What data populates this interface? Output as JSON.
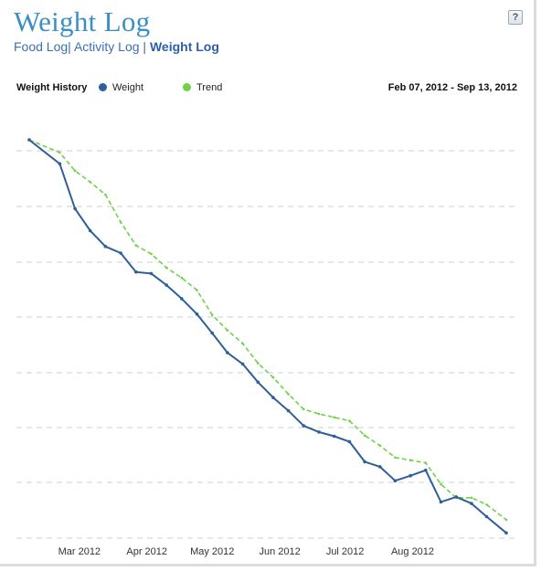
{
  "page": {
    "title": "Weight Log",
    "help_label": "?"
  },
  "nav": {
    "items": [
      {
        "label": "Food Log"
      },
      {
        "label": "Activity Log"
      },
      {
        "label": "Weight Log",
        "active": true
      }
    ],
    "separator": "|"
  },
  "chart_header": {
    "title": "Weight History",
    "legend": [
      {
        "label": "Weight",
        "color": "#2f5f9a"
      },
      {
        "label": "Trend",
        "color": "#6fd24a"
      }
    ],
    "date_range": "Feb 07, 2012 - Sep 13, 2012"
  },
  "chart_data": {
    "type": "line",
    "title": "",
    "xlabel": "",
    "ylabel": "",
    "x_ticks": [
      "Mar 2012",
      "Apr 2012",
      "May 2012",
      "Jun 2012",
      "Jul 2012",
      "Aug 2012"
    ],
    "x_tick_days": [
      23,
      54,
      84,
      115,
      145,
      176
    ],
    "x_range_days": [
      0,
      219
    ],
    "y_range": [
      0,
      1
    ],
    "grid": "horizontal dashed",
    "series": [
      {
        "name": "Weight",
        "color": "#2f5f9a",
        "x_days": [
          0,
          14,
          21,
          28,
          35,
          42,
          49,
          56,
          63,
          70,
          77,
          84,
          91,
          98,
          105,
          112,
          119,
          126,
          133,
          140,
          147,
          154,
          161,
          168,
          175,
          182,
          189,
          196,
          203,
          210,
          219
        ],
        "y": [
          0.962,
          0.9,
          0.784,
          0.727,
          0.686,
          0.669,
          0.62,
          0.616,
          0.586,
          0.551,
          0.511,
          0.462,
          0.411,
          0.382,
          0.335,
          0.295,
          0.261,
          0.222,
          0.206,
          0.195,
          0.181,
          0.129,
          0.116,
          0.08,
          0.093,
          0.107,
          0.025,
          0.038,
          0.021,
          -0.013,
          -0.055
        ]
      },
      {
        "name": "Trend",
        "color": "#6fd24a",
        "x_days": [
          0,
          14,
          21,
          28,
          35,
          42,
          49,
          56,
          63,
          70,
          77,
          84,
          91,
          98,
          105,
          112,
          119,
          126,
          133,
          140,
          147,
          154,
          161,
          168,
          175,
          182,
          189,
          196,
          203,
          210,
          219
        ],
        "y": [
          0.962,
          0.929,
          0.882,
          0.853,
          0.82,
          0.749,
          0.689,
          0.667,
          0.631,
          0.605,
          0.573,
          0.509,
          0.469,
          0.435,
          0.384,
          0.347,
          0.304,
          0.265,
          0.253,
          0.244,
          0.235,
          0.197,
          0.171,
          0.14,
          0.133,
          0.126,
          0.071,
          0.036,
          0.036,
          0.018,
          -0.021
        ]
      }
    ]
  }
}
